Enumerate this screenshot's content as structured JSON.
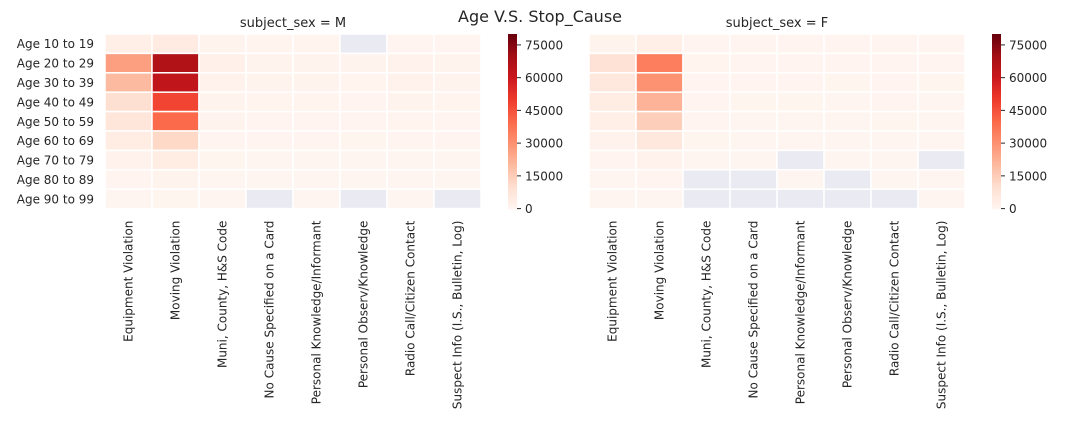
{
  "chart_data": {
    "type": "heatmap",
    "title": "Age V.S. Stop_Cause",
    "rows": [
      "Age 10 to 19",
      "Age 20 to 29",
      "Age 30 to 39",
      "Age 40 to 49",
      "Age 50 to 59",
      "Age 60 to 69",
      "Age 70 to 79",
      "Age 80 to 89",
      "Age 90 to 99"
    ],
    "columns": [
      "Equipment Violation",
      "Moving Violation",
      "Muni, County, H&S Code",
      "No Cause Specified on a Card",
      "Personal Knowledge/Informant",
      "Personal Observ/Knowledge",
      "Radio Call/Citizen Contact",
      "Suspect Info (I.S., Bulletin, Log)"
    ],
    "colorbar": {
      "min": 0,
      "max": 80000,
      "ticks": [
        0,
        15000,
        30000,
        45000,
        60000,
        75000
      ],
      "colormap": "Reds"
    },
    "missing_color": "#eaeaf2",
    "panels": [
      {
        "title": "subject_sex = M",
        "values": [
          [
            3000,
            5000,
            800,
            600,
            600,
            null,
            500,
            400
          ],
          [
            27000,
            67000,
            2000,
            1000,
            1000,
            800,
            1500,
            900
          ],
          [
            20000,
            63000,
            1500,
            900,
            900,
            700,
            1200,
            800
          ],
          [
            10000,
            48000,
            1000,
            700,
            700,
            500,
            900,
            600
          ],
          [
            7000,
            40000,
            800,
            500,
            500,
            400,
            700,
            500
          ],
          [
            4000,
            12000,
            500,
            300,
            300,
            200,
            400,
            300
          ],
          [
            1500,
            4000,
            200,
            100,
            100,
            80,
            150,
            100
          ],
          [
            500,
            1000,
            50,
            30,
            30,
            20,
            40,
            30
          ],
          [
            100,
            200,
            10,
            null,
            5,
            null,
            10,
            null
          ]
        ]
      },
      {
        "title": "subject_sex = F",
        "values": [
          [
            1000,
            3000,
            400,
            300,
            300,
            300,
            300,
            300
          ],
          [
            9000,
            35000,
            600,
            400,
            400,
            300,
            500,
            300
          ],
          [
            6000,
            30000,
            500,
            300,
            300,
            200,
            400,
            200
          ],
          [
            4000,
            22000,
            400,
            200,
            200,
            150,
            300,
            150
          ],
          [
            3000,
            15000,
            300,
            150,
            150,
            100,
            200,
            100
          ],
          [
            1500,
            6000,
            200,
            80,
            80,
            60,
            100,
            60
          ],
          [
            400,
            1500,
            50,
            30,
            null,
            20,
            30,
            null
          ],
          [
            100,
            300,
            null,
            null,
            5,
            null,
            5,
            5
          ],
          [
            20,
            60,
            null,
            null,
            null,
            null,
            null,
            2
          ]
        ]
      }
    ]
  }
}
